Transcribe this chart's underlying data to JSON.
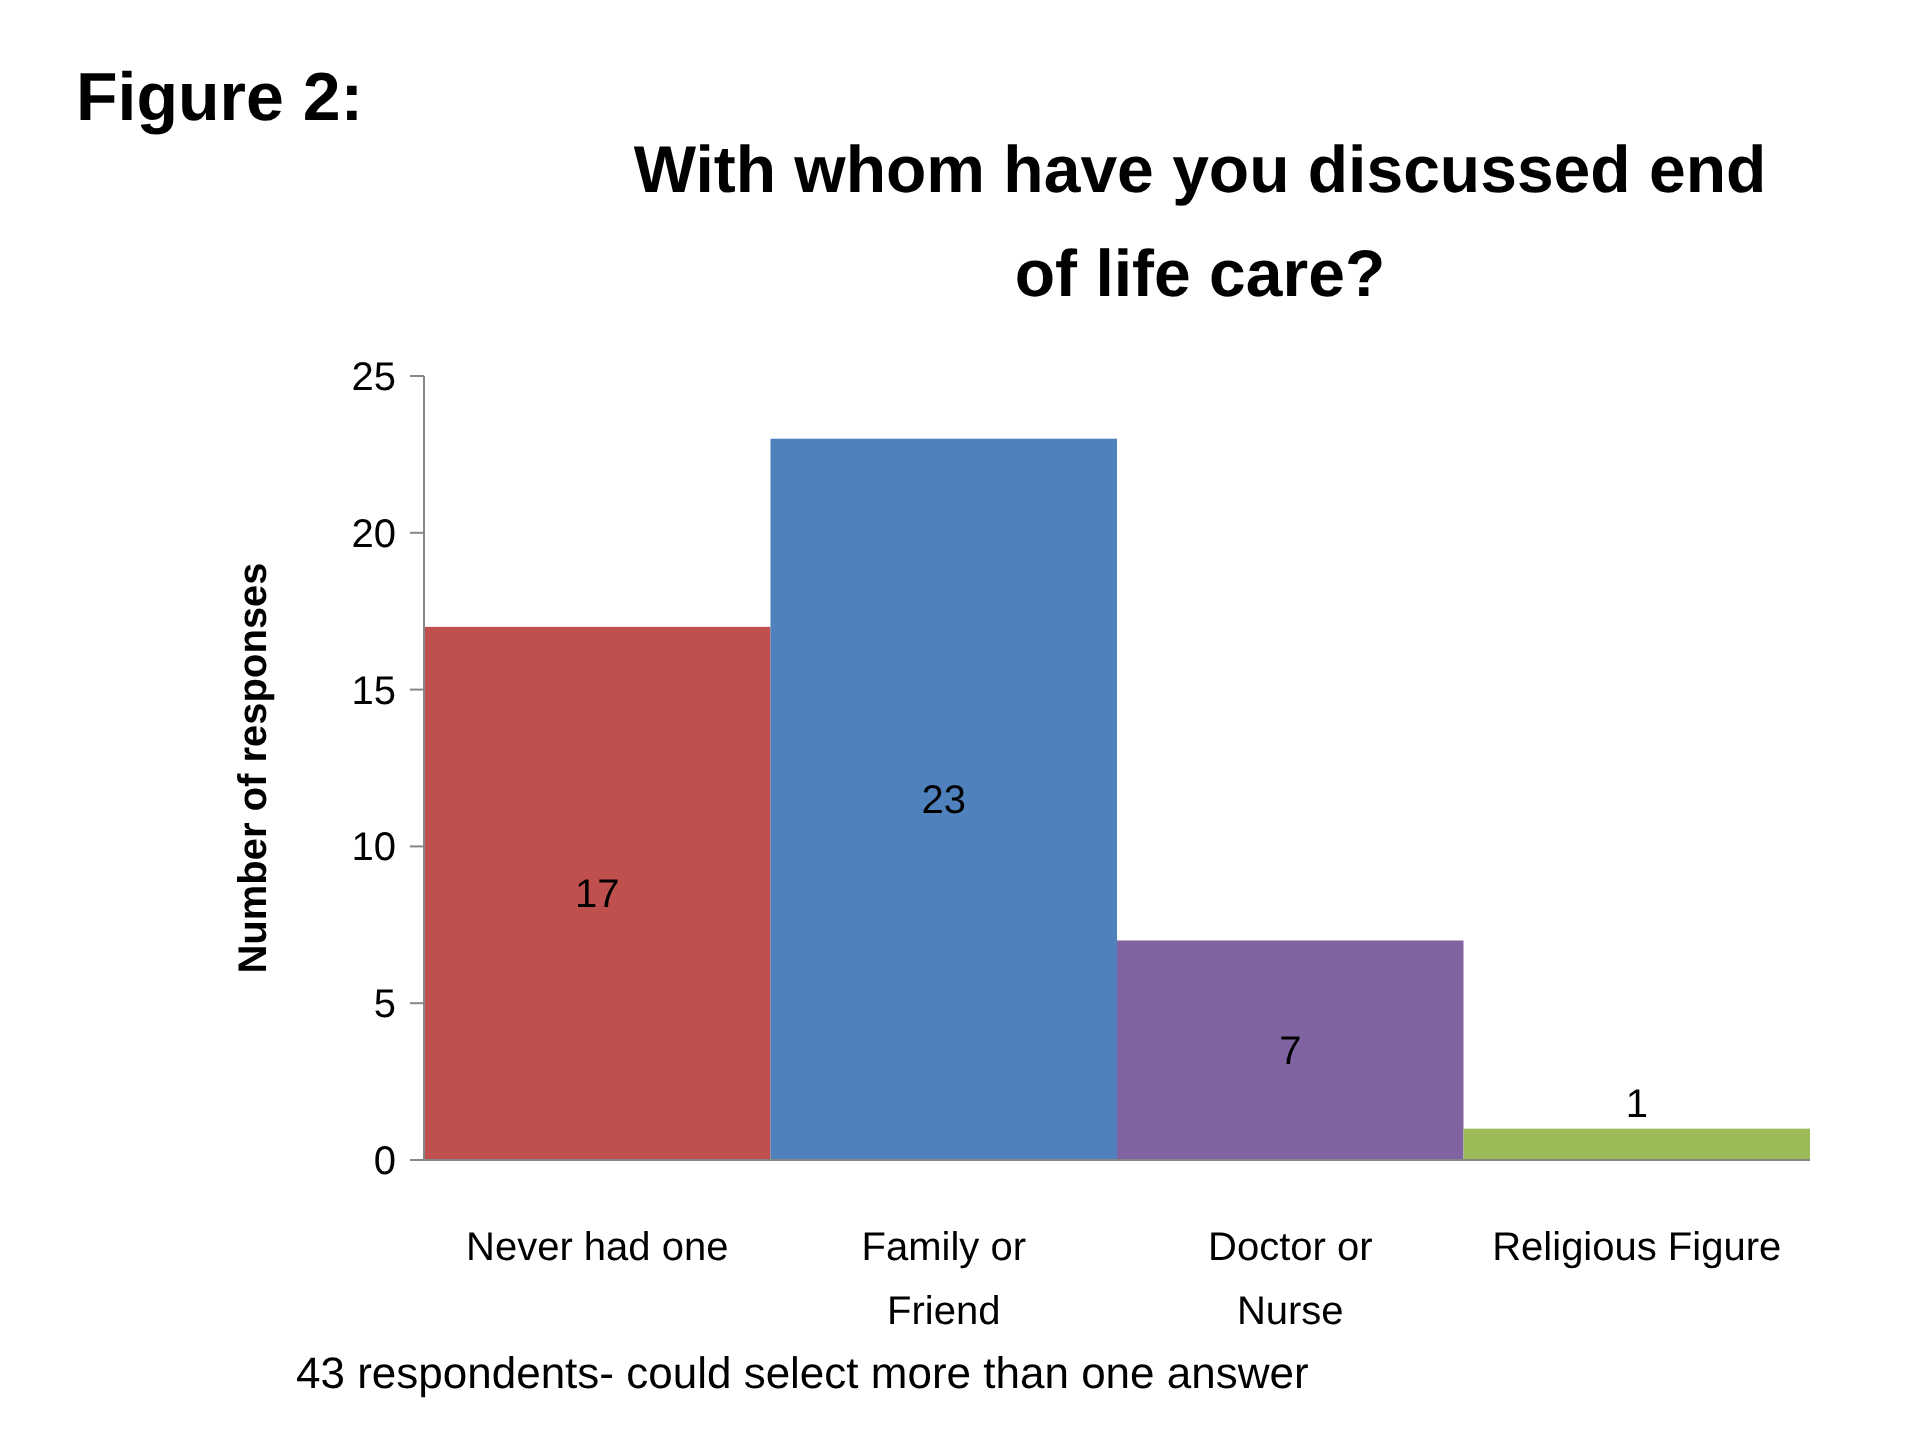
{
  "chart_data": {
    "type": "bar",
    "title": "With whom have you discussed end of life care?",
    "ylabel": "Number of responses",
    "categories": [
      "Never had one",
      "Family or\nFriend",
      "Doctor or\nNurse",
      "Religious Figure"
    ],
    "values": [
      17,
      23,
      7,
      1
    ],
    "colors": [
      "#c0504d",
      "#4f81bd",
      "#8064a2",
      "#9bbb59"
    ],
    "ylim": [
      0,
      25
    ],
    "yticks": [
      0,
      5,
      10,
      15,
      20,
      25
    ],
    "grid": false,
    "data_labels": true,
    "annotations": [
      "Figure 2:",
      "43 respondents- could select more than one answer"
    ]
  }
}
